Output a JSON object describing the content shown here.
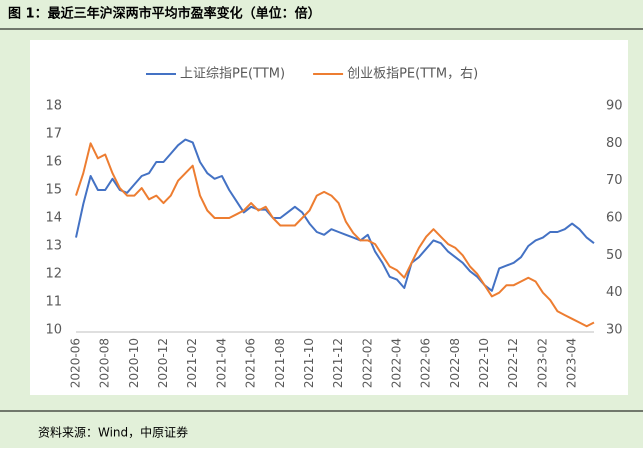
{
  "chart_data": {
    "type": "line",
    "title": "图 1：最近三年沪深两市平均市盈率变化（单位：倍）",
    "source": "资料来源：Wind，中原证券",
    "categories": [
      "2020-06",
      null,
      null,
      null,
      "2020-08",
      null,
      null,
      null,
      "2020-10",
      null,
      null,
      null,
      "2020-12",
      null,
      null,
      null,
      "2021-02",
      null,
      null,
      null,
      "2021-04",
      null,
      null,
      null,
      "2021-06",
      null,
      null,
      null,
      "2021-08",
      null,
      null,
      null,
      "2021-10",
      null,
      null,
      null,
      "2021-12",
      null,
      null,
      null,
      "2022-02",
      null,
      null,
      null,
      "2022-04",
      null,
      null,
      null,
      "2022-06",
      null,
      null,
      null,
      "2022-08",
      null,
      null,
      null,
      "2022-10",
      null,
      null,
      null,
      "2022-12",
      null,
      null,
      null,
      "2023-02",
      null,
      null,
      null,
      "2023-04",
      null,
      null,
      null
    ],
    "series": [
      {
        "name": "上证综指PE(TTM)",
        "color": "#4472c4",
        "values": [
          13.3,
          14.5,
          15.5,
          15.0,
          15.0,
          15.4,
          15.0,
          14.9,
          15.2,
          15.5,
          15.6,
          16.0,
          16.0,
          16.3,
          16.6,
          16.8,
          16.7,
          16.0,
          15.6,
          15.4,
          15.5,
          15.0,
          14.6,
          14.2,
          14.4,
          14.3,
          14.3,
          14.0,
          14.0,
          14.2,
          14.4,
          14.2,
          13.8,
          13.5,
          13.4,
          13.6,
          13.5,
          13.4,
          13.3,
          13.2,
          13.4,
          12.8,
          12.4,
          11.9,
          11.8,
          11.5,
          12.4,
          12.6,
          12.9,
          13.2,
          13.1,
          12.8,
          12.6,
          12.4,
          12.1,
          11.9,
          11.6,
          11.4,
          12.2,
          12.3,
          12.4,
          12.6,
          13.0,
          13.2,
          13.3,
          13.5,
          13.5,
          13.6,
          13.8,
          13.6,
          13.3,
          13.1
        ]
      },
      {
        "name": "创业板指PE(TTM，右)",
        "color": "#ed7d31",
        "axis": "y2",
        "values": [
          66,
          72,
          80,
          76,
          77,
          72,
          68,
          66,
          66,
          68,
          65,
          66,
          64,
          66,
          70,
          72,
          74,
          66,
          62,
          60,
          60,
          60,
          61,
          62,
          64,
          62,
          63,
          60,
          58,
          58,
          58,
          60,
          62,
          66,
          67,
          66,
          64,
          59,
          56,
          54,
          54,
          53,
          50,
          47,
          46,
          44,
          48,
          52,
          55,
          57,
          55,
          53,
          52,
          50,
          47,
          45,
          42,
          39,
          40,
          42,
          42,
          43,
          44,
          43,
          40,
          38,
          35,
          34,
          33,
          32,
          31,
          32
        ]
      }
    ],
    "ylim": [
      10,
      18
    ],
    "yticks": [
      10,
      11,
      12,
      13,
      14,
      15,
      16,
      17,
      18
    ],
    "y2lim": [
      30,
      90
    ],
    "y2ticks": [
      30,
      40,
      50,
      60,
      70,
      80,
      90
    ],
    "grid": false
  }
}
